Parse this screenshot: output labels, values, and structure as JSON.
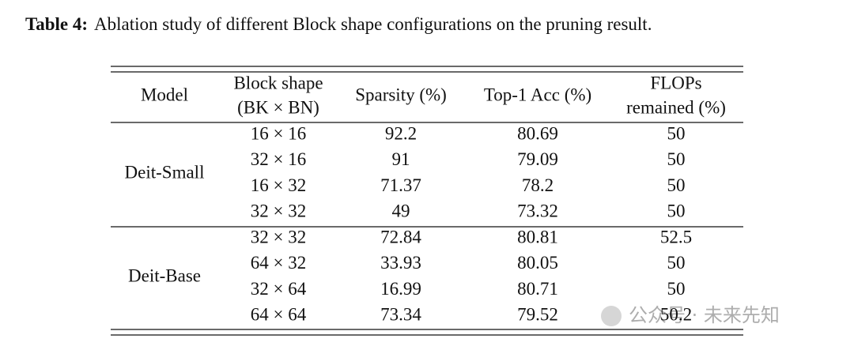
{
  "caption": {
    "label": "Table 4:",
    "text": "Ablation study of different Block shape configurations on the pruning result."
  },
  "table": {
    "header": [
      "Model",
      [
        "Block shape",
        "(BK × BN)"
      ],
      "Sparsity (%)",
      "Top-1 Acc (%)",
      [
        "FLOPs",
        "remained (%)"
      ]
    ],
    "groups": [
      {
        "model": "Deit-Small",
        "rows": [
          [
            "16 × 16",
            "92.2",
            "80.69",
            "50"
          ],
          [
            "32 × 16",
            "91",
            "79.09",
            "50"
          ],
          [
            "16 × 32",
            "71.37",
            "78.2",
            "50"
          ],
          [
            "32 × 32",
            "49",
            "73.32",
            "50"
          ]
        ]
      },
      {
        "model": "Deit-Base",
        "rows": [
          [
            "32 × 32",
            "72.84",
            "80.81",
            "52.5"
          ],
          [
            "64 × 32",
            "33.93",
            "80.05",
            "50"
          ],
          [
            "32 × 64",
            "16.99",
            "80.71",
            "50"
          ],
          [
            "64 × 64",
            "73.34",
            "79.52",
            "50.2"
          ]
        ]
      }
    ]
  },
  "watermark": "公众号 · 未来先知"
}
